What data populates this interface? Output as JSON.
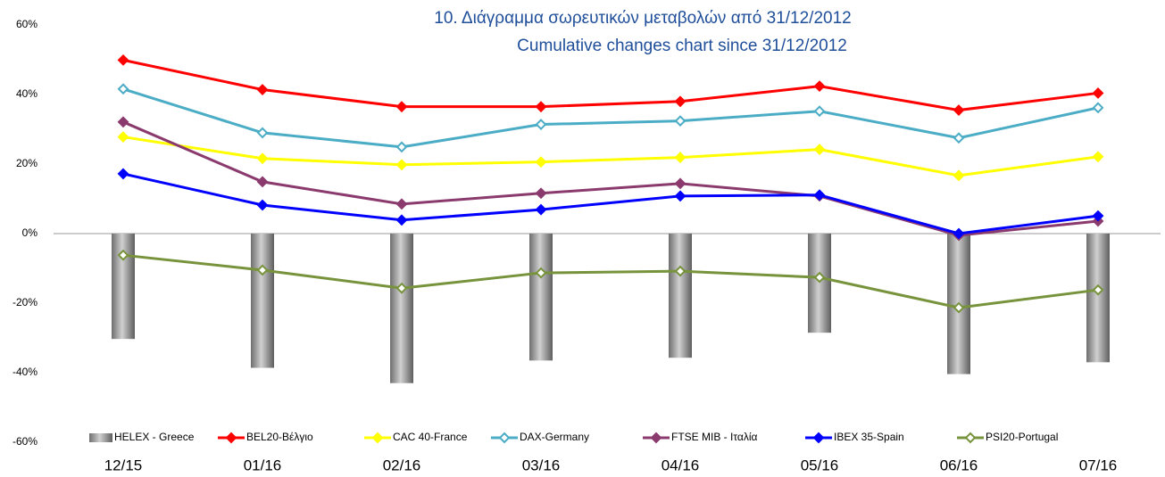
{
  "chart_data": {
    "type": "combo",
    "title": "10.  Διάγραμμα σωρευτικών μεταβολών από 31/12/2012",
    "subtitle": "Cumulative changes chart since 31/12/2012",
    "categories": [
      "12/15",
      "01/16",
      "02/16",
      "03/16",
      "04/16",
      "05/16",
      "06/16",
      "07/16"
    ],
    "ylim": [
      -60,
      60
    ],
    "yticks": [
      {
        "value": -60,
        "label": "-60%"
      },
      {
        "value": -40,
        "label": "-40%"
      },
      {
        "value": -20,
        "label": "-20%"
      },
      {
        "value": 0,
        "label": "0%"
      },
      {
        "value": 20,
        "label": "20%"
      },
      {
        "value": 40,
        "label": "40%"
      },
      {
        "value": 60,
        "label": "60%"
      }
    ],
    "legend": "bottom",
    "series": [
      {
        "name": "HELEX - Greece",
        "type": "bar",
        "color": "#9a9a9a",
        "values": [
          -30.3,
          -38.6,
          -43,
          -36.5,
          -35.7,
          -28.5,
          -40.4,
          -37
        ]
      },
      {
        "name": "BEL20-Βέλγιο",
        "type": "line",
        "color": "#ff0000",
        "marker_filled": true,
        "values": [
          49.9,
          41.4,
          36.5,
          36.5,
          38,
          42.4,
          35.5,
          40.4
        ]
      },
      {
        "name": "CAC 40-France",
        "type": "line",
        "color": "#ffff00",
        "marker_filled": true,
        "values": [
          27.8,
          21.6,
          19.8,
          20.6,
          21.9,
          24.2,
          16.7,
          22.1
        ]
      },
      {
        "name": "DAX-Germany",
        "type": "line",
        "color": "#4bacc6",
        "marker_filled": false,
        "values": [
          41.6,
          29,
          24.9,
          31.4,
          32.4,
          35.2,
          27.5,
          36.2
        ]
      },
      {
        "name": "FTSE MIB - Ιταλία",
        "type": "line",
        "color": "#8b3a6e",
        "marker_filled": true,
        "values": [
          32.1,
          14.9,
          8.5,
          11.6,
          14.4,
          10.8,
          -0.5,
          3.6
        ]
      },
      {
        "name": "IBEX 35-Spain",
        "type": "line",
        "color": "#0000ff",
        "marker_filled": true,
        "values": [
          17.2,
          8.2,
          3.9,
          6.9,
          10.8,
          11.1,
          0,
          5.1
        ]
      },
      {
        "name": "PSI20-Portugal",
        "type": "line",
        "color": "#77933c",
        "marker_filled": false,
        "values": [
          -6.2,
          -10.5,
          -15.7,
          -11.3,
          -10.8,
          -12.6,
          -21.3,
          -16.2
        ]
      }
    ]
  }
}
